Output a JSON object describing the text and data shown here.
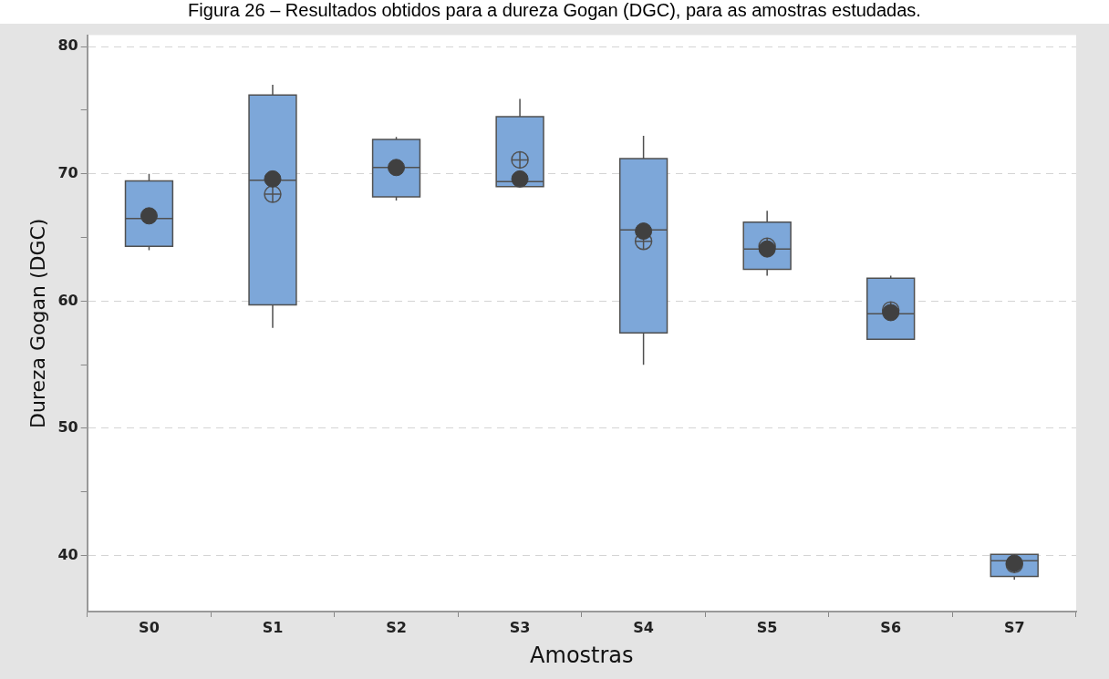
{
  "chart_data": {
    "type": "box",
    "title": "Figura 26 – Resultados obtidos para a dureza Gogan (DGC), para as amostras estudadas.",
    "xlabel": "Amostras",
    "ylabel": "Dureza Gogan (DGC)",
    "categories": [
      "S0",
      "S1",
      "S2",
      "S3",
      "S4",
      "S5",
      "S6",
      "S7"
    ],
    "ylim": [
      35.6,
      80.9
    ],
    "yticks": [
      40,
      {
        "value": 45,
        "label": null
      },
      50,
      {
        "value": 55,
        "label": null
      },
      60,
      {
        "value": 65,
        "label": null
      },
      70,
      {
        "value": 75,
        "label": null
      },
      80
    ],
    "grid": "y",
    "legend": false,
    "series": [
      {
        "color": "#7da7d9",
        "boxes": [
          {
            "low": 64.0,
            "q1": 64.3,
            "median": 66.5,
            "q3": 69.45,
            "high": 70.0
          },
          {
            "low": 57.9,
            "q1": 59.7,
            "median": 69.5,
            "q3": 76.2,
            "high": 77.0,
            "mean": 68.4
          },
          {
            "low": 67.9,
            "q1": 68.2,
            "median": 70.5,
            "q3": 72.7,
            "high": 72.9
          },
          {
            "low": 69.0,
            "q1": 69.0,
            "median": 69.4,
            "q3": 74.5,
            "high": 75.9,
            "mean": 71.1
          },
          {
            "low": 55.0,
            "q1": 57.5,
            "median": 65.6,
            "q3": 71.2,
            "high": 73.0,
            "mean": 64.7
          },
          {
            "low": 62.0,
            "q1": 62.5,
            "median": 64.1,
            "q3": 66.2,
            "high": 67.1,
            "mean": 64.3
          },
          {
            "low": 57.0,
            "q1": 57.0,
            "median": 59.0,
            "q3": 61.8,
            "high": 62.0,
            "mean": 59.3
          },
          {
            "low": 38.1,
            "q1": 38.35,
            "median": 39.6,
            "q3": 40.1,
            "high": 40.1,
            "mean": 39.3
          }
        ]
      },
      {
        "type": "scatter",
        "color": "#404040",
        "marker": "circle",
        "x": [
          "S0",
          "S1",
          "S2",
          "S3",
          "S4",
          "S5",
          "S6",
          "S7"
        ],
        "values": [
          66.7,
          69.6,
          70.5,
          69.6,
          65.5,
          64.1,
          59.1,
          39.4
        ]
      }
    ]
  }
}
